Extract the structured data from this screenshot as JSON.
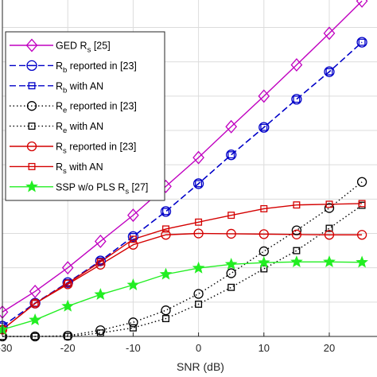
{
  "chart_data": {
    "type": "line",
    "xlabel": "SNR (dB)",
    "ylabel": "",
    "title": "",
    "xlim": [
      -30,
      30
    ],
    "ylim": [
      0,
      10
    ],
    "x": [
      -30,
      -25,
      -20,
      -15,
      -10,
      -5,
      0,
      5,
      10,
      15,
      20,
      25
    ],
    "x_ticks": [
      -30,
      -20,
      -10,
      0,
      10,
      20
    ],
    "x_tick_labels": [
      "-30",
      "-20",
      "-10",
      "0",
      "10",
      "20"
    ],
    "grid": true,
    "legend_position": "top-left",
    "series": [
      {
        "name": "GED R_s [25]",
        "main": "GED R",
        "sub": "s",
        "rest": " [25]",
        "color": "#c000c0",
        "dash": "",
        "marker": "diamond",
        "values": [
          0.71,
          1.31,
          2.0,
          2.77,
          3.53,
          4.37,
          5.21,
          6.11,
          7.0,
          7.91,
          8.83,
          9.77
        ]
      },
      {
        "name": "R_b reported in [23]",
        "main": "R",
        "sub": "b",
        "rest": " reported in [23]",
        "color": "#0000c8",
        "dash": "8,4",
        "marker": "circle-line",
        "values": [
          0.3,
          0.97,
          1.57,
          2.2,
          2.91,
          3.64,
          4.45,
          5.29,
          6.09,
          6.91,
          7.71,
          8.57
        ]
      },
      {
        "name": "R_b with AN",
        "main": "R",
        "sub": "b",
        "rest": " with AN",
        "color": "#0000c8",
        "dash": "8,4",
        "marker": "square-line",
        "values": [
          0.3,
          0.97,
          1.57,
          2.2,
          2.91,
          3.64,
          4.45,
          5.29,
          6.09,
          6.91,
          7.71,
          8.57
        ]
      },
      {
        "name": "R_e reported in [23]",
        "main": "R",
        "sub": "e",
        "rest": " reported in [23]",
        "color": "#000000",
        "dash": "1.5,3",
        "marker": "circle",
        "values": [
          0.0,
          0.0,
          0.02,
          0.18,
          0.41,
          0.76,
          1.24,
          1.84,
          2.48,
          3.09,
          3.74,
          4.5
        ]
      },
      {
        "name": "R_e with AN",
        "main": "R",
        "sub": "e",
        "rest": " with AN",
        "color": "#000000",
        "dash": "1.5,3",
        "marker": "square",
        "values": [
          0.0,
          0.0,
          0.0,
          0.1,
          0.25,
          0.52,
          0.94,
          1.43,
          1.97,
          2.5,
          3.15,
          3.82
        ]
      },
      {
        "name": "R_s reported in [23]",
        "main": "R",
        "sub": "s",
        "rest": " reported in [23]",
        "color": "#d40000",
        "dash": "",
        "marker": "circle",
        "values": [
          0.2,
          0.96,
          1.52,
          2.09,
          2.67,
          2.96,
          3.0,
          2.99,
          2.98,
          2.97,
          2.96,
          2.96
        ]
      },
      {
        "name": "R_s with AN",
        "main": "R",
        "sub": "s",
        "rest": " with AN",
        "color": "#d40000",
        "dash": "",
        "marker": "square",
        "values": [
          0.2,
          0.96,
          1.55,
          2.17,
          2.83,
          3.13,
          3.33,
          3.53,
          3.72,
          3.83,
          3.85,
          3.87
        ]
      },
      {
        "name": "SSP w/o PLS R_s [27]",
        "main": "SSP w/o PLS R",
        "sub": "s",
        "rest": " [27]",
        "color": "#22ee22",
        "dash": "",
        "marker": "star",
        "values": [
          0.2,
          0.48,
          0.88,
          1.22,
          1.5,
          1.81,
          1.99,
          2.1,
          2.15,
          2.17,
          2.17,
          2.16
        ]
      }
    ]
  }
}
